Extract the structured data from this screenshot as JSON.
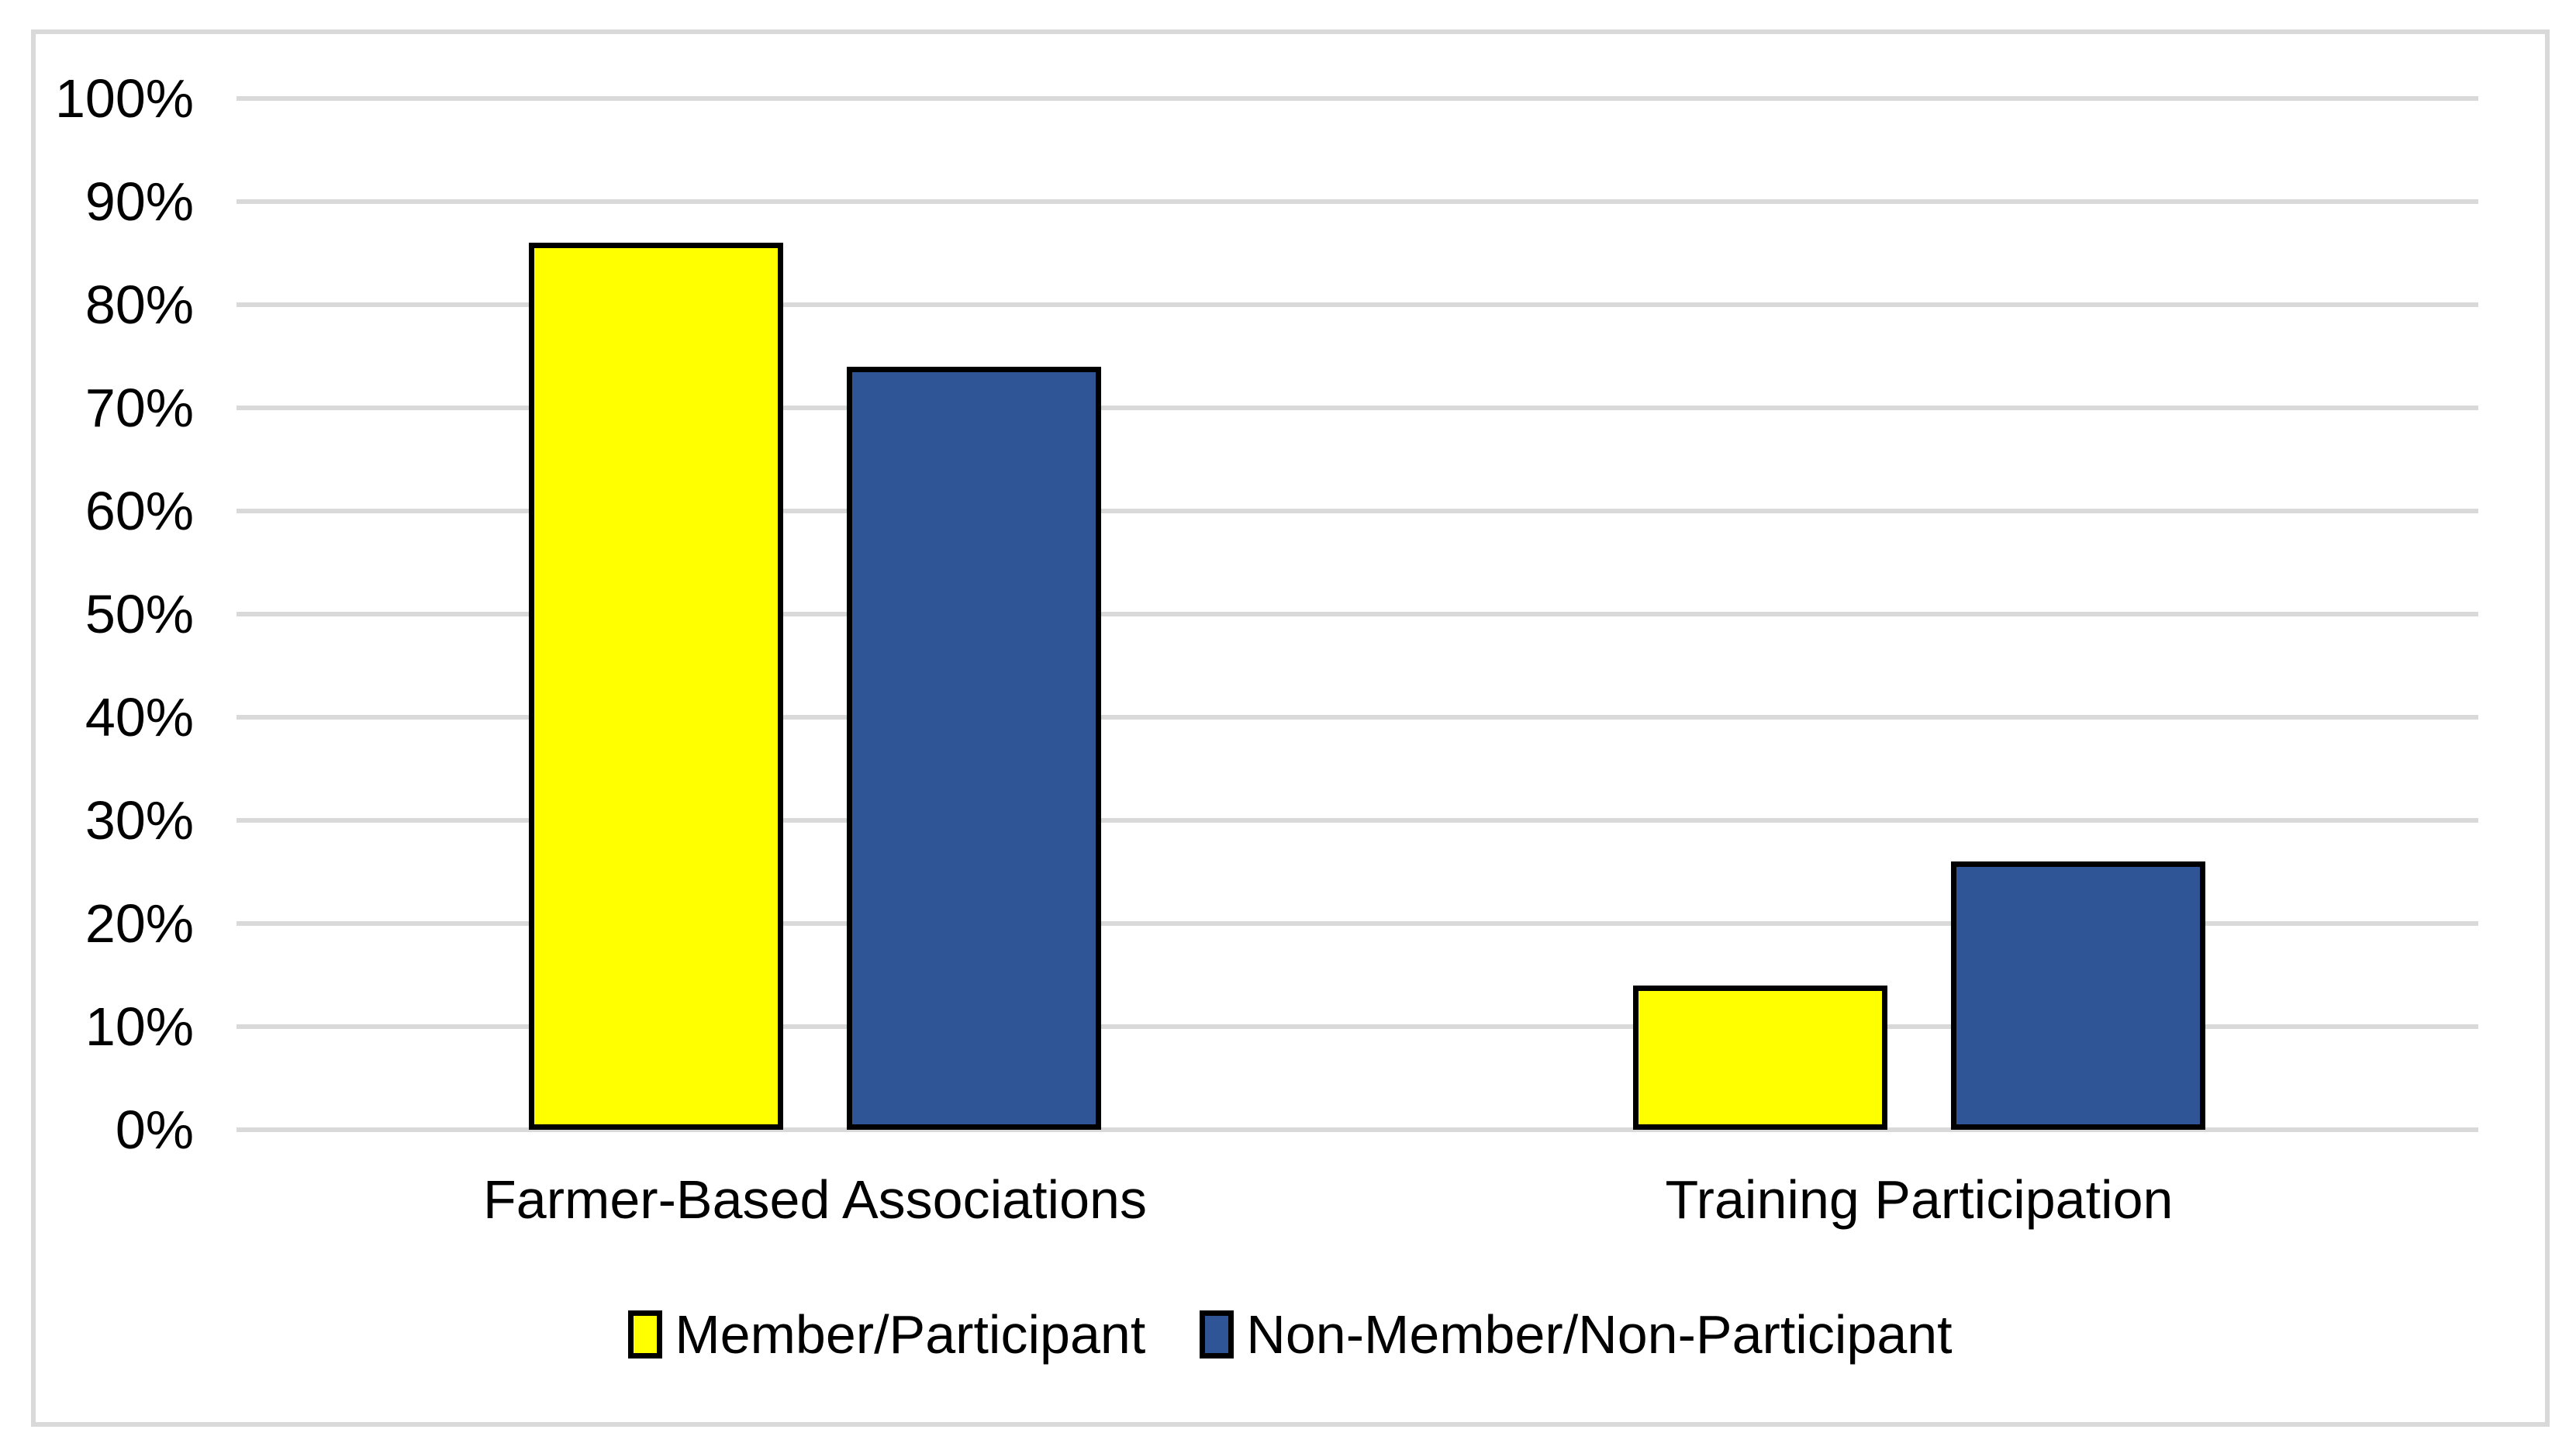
{
  "chart_data": {
    "type": "bar",
    "title": "",
    "categories": [
      "Farmer-Based Associations",
      "Training Participation"
    ],
    "series": [
      {
        "name": "Member/Participant",
        "color": "#ffff00",
        "values": [
          86,
          14
        ]
      },
      {
        "name": "Non-Member/Non-Participant",
        "color": "#2f5597",
        "values": [
          74,
          26
        ]
      }
    ],
    "ylim": [
      0,
      100
    ],
    "yticks": [
      0,
      10,
      20,
      30,
      40,
      50,
      60,
      70,
      80,
      90,
      100
    ],
    "ytick_labels": [
      "0%",
      "10%",
      "20%",
      "30%",
      "40%",
      "50%",
      "60%",
      "70%",
      "80%",
      "90%",
      "100%"
    ],
    "value_format": "percent",
    "grid": "horizontal",
    "gridline_color": "#d9d9d9",
    "bar_border_color": "#000000",
    "frame_border_color": "#d9d9d9",
    "background_color": "#ffffff",
    "legend_position": "bottom"
  }
}
